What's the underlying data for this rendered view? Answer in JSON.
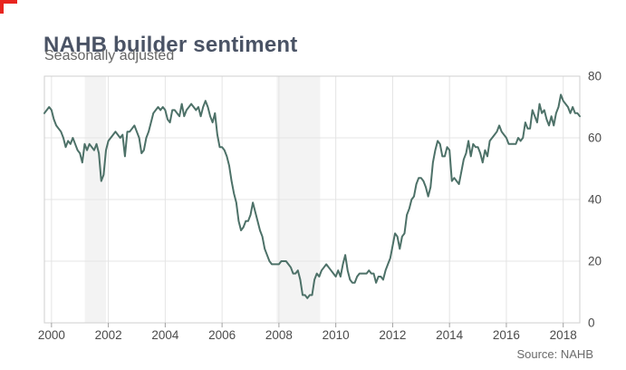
{
  "page": {
    "title": "NAHB builder sentiment",
    "subtitle": "Seasonally adjusted",
    "source": "Source: NAHB"
  },
  "colors": {
    "accent_red": "#e8251f",
    "line": "#4d7168",
    "recession_band": "#f3f3f3",
    "grid": "#e4e4e4",
    "plot_border": "#cfcfcf",
    "tick": "#a0a0a0",
    "axis_label": "#4b4b4b",
    "title": "#4a5365",
    "subtitle": "#666666",
    "source": "#6b6b6b"
  },
  "chart_data": {
    "type": "line",
    "title": "NAHB builder sentiment",
    "subtitle": "Seasonally adjusted",
    "source": "Source: NAHB",
    "series_name": "NAHB housing market index (seasonally adjusted)",
    "frequency": "monthly",
    "x_start": "1999-10",
    "x_end": "2018-08",
    "x_start_decimal": 1999.75,
    "x_range": [
      1999.75,
      2018.5833
    ],
    "ylim": [
      0,
      80
    ],
    "x_ticks": [
      2000,
      2002,
      2004,
      2006,
      2008,
      2010,
      2012,
      2014,
      2016,
      2018
    ],
    "x_tick_labels": [
      "2000",
      "2002",
      "2004",
      "2006",
      "2008",
      "2010",
      "2012",
      "2014",
      "2016",
      "2018"
    ],
    "y_ticks": [
      0,
      20,
      40,
      60,
      80
    ],
    "y_tick_labels": [
      "0",
      "20",
      "40",
      "60",
      "80"
    ],
    "y_axis_side": "right",
    "grid": true,
    "legend": false,
    "recession_bands": [
      {
        "start": 2001.17,
        "end": 2001.92
      },
      {
        "start": 2007.92,
        "end": 2009.45
      }
    ],
    "values": [
      68,
      69,
      70,
      69,
      66,
      64,
      63,
      62,
      60,
      57,
      59,
      58,
      60,
      58,
      56,
      55,
      52,
      58,
      56,
      58,
      57,
      56,
      58,
      55,
      46,
      48,
      56,
      59,
      60,
      61,
      62,
      61,
      60,
      61,
      54,
      62,
      62,
      63,
      64,
      62,
      60,
      55,
      56,
      60,
      62,
      65,
      68,
      69,
      70,
      69,
      70,
      69,
      66,
      65,
      69,
      69,
      68,
      67,
      71,
      67,
      69,
      70,
      71,
      70,
      69,
      70,
      67,
      70,
      72,
      70,
      67,
      65,
      68,
      61,
      57,
      57,
      56,
      54,
      51,
      46,
      42,
      39,
      33,
      30,
      31,
      33,
      33,
      35,
      39,
      36,
      33,
      30,
      28,
      24,
      22,
      20,
      19,
      19,
      19,
      19,
      20,
      20,
      20,
      19,
      18,
      16,
      16,
      17,
      14,
      9,
      9,
      8,
      9,
      9,
      14,
      16,
      15,
      17,
      18,
      19,
      18,
      17,
      16,
      15,
      17,
      15,
      19,
      22,
      17,
      14,
      13,
      13,
      15,
      16,
      16,
      16,
      16,
      17,
      16,
      16,
      13,
      15,
      15,
      14,
      17,
      19,
      21,
      25,
      29,
      28,
      24,
      28,
      29,
      35,
      37,
      40,
      41,
      45,
      47,
      47,
      46,
      44,
      41,
      44,
      52,
      56,
      59,
      58,
      54,
      54,
      57,
      56,
      46,
      47,
      46,
      45,
      49,
      53,
      55,
      59,
      54,
      58,
      57,
      57,
      55,
      52,
      56,
      54,
      59,
      60,
      61,
      62,
      64,
      62,
      61,
      60,
      58,
      58,
      58,
      58,
      60,
      59,
      60,
      65,
      63,
      63,
      69,
      67,
      65,
      71,
      68,
      69,
      66,
      64,
      67,
      64,
      68,
      70,
      74,
      72,
      71,
      70,
      68,
      70,
      68,
      68,
      67
    ]
  }
}
